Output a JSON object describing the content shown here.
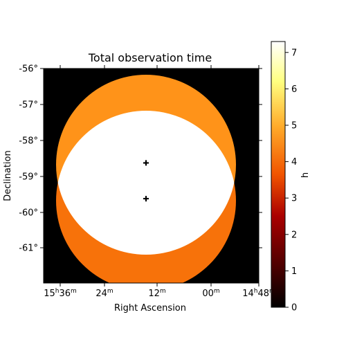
{
  "chart_data": {
    "type": "heatmap",
    "title": "Total observation time",
    "xlabel": "Right Ascension",
    "ylabel": "Declination",
    "x_ticks": [
      {
        "h": "15",
        "m": "36"
      },
      {
        "h": "",
        "m": "24"
      },
      {
        "h": "",
        "m": "12"
      },
      {
        "h": "",
        "m": "00"
      },
      {
        "h": "14",
        "m": "48"
      }
    ],
    "y_ticks": [
      "-56°",
      "-57°",
      "-58°",
      "-59°",
      "-60°",
      "-61°"
    ],
    "y_range_deg": [
      -62.0,
      -56.0
    ],
    "colorbar": {
      "label": "h",
      "ticks": [
        0,
        1,
        2,
        3,
        4,
        5,
        6,
        7
      ],
      "range": [
        0,
        7.3
      ],
      "colormap": "afmhot"
    },
    "regions": [
      {
        "name": "upper-pointing-only",
        "value": 3.65
      },
      {
        "name": "lower-pointing-only",
        "value": 3.35
      },
      {
        "name": "overlap",
        "value": 7.0
      },
      {
        "name": "outside",
        "value": 0
      }
    ],
    "pointings": [
      {
        "dec": -58.65
      },
      {
        "dec": -59.65
      }
    ]
  },
  "colors": {
    "upper_only": "#ff9319",
    "lower_only": "#f7720a",
    "overlap": "#ffffff",
    "background": "#000000"
  }
}
